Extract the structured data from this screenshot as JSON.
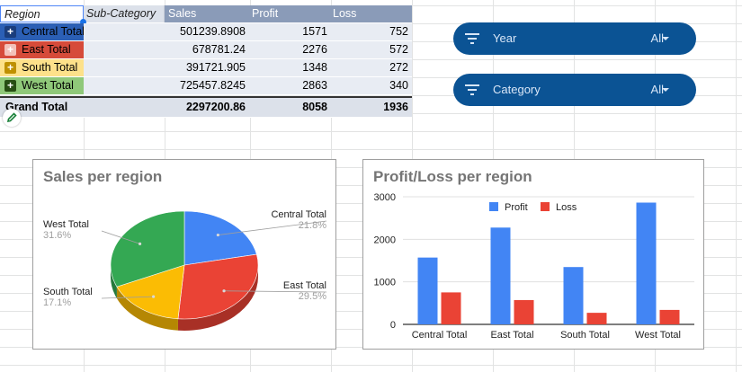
{
  "pivot": {
    "headers": {
      "region": "Region",
      "sub_category": "Sub-Category",
      "sales": "Sales",
      "profit": "Profit",
      "loss": "Loss"
    },
    "rows": [
      {
        "label": "Central Total",
        "sales": "501239.8908",
        "profit": "1571",
        "loss": "752",
        "toggle": "+",
        "color": "#2b5fb5",
        "toggle_color": "#1a3d7c",
        "text_color": "#000000"
      },
      {
        "label": "East Total",
        "sales": "678781.24",
        "profit": "2276",
        "loss": "572",
        "toggle": "+",
        "color": "#d64b3a",
        "toggle_color": "#f3c1ba",
        "text_color": "#000000"
      },
      {
        "label": "South Total",
        "sales": "391721.905",
        "profit": "1348",
        "loss": "272",
        "toggle": "+",
        "color": "#fde18a",
        "toggle_color": "#bf9000",
        "text_color": "#000000"
      },
      {
        "label": "West Total",
        "sales": "725457.8245",
        "profit": "2863",
        "loss": "340",
        "toggle": "+",
        "color": "#8fc879",
        "toggle_color": "#274e13",
        "text_color": "#000000"
      }
    ],
    "grand_total": {
      "label": "Grand Total",
      "sales": "2297200.86",
      "profit": "8058",
      "loss": "1936"
    }
  },
  "filters": [
    {
      "label": "Year",
      "value": "All"
    },
    {
      "label": "Category",
      "value": "All"
    }
  ],
  "chart_data": [
    {
      "type": "pie",
      "title": "Sales per region",
      "slices": [
        {
          "label": "Central Total",
          "value": 501239.8908,
          "percent": "21.8%",
          "color": "#4285f4"
        },
        {
          "label": "East Total",
          "value": 678781.24,
          "percent": "29.5%",
          "color": "#ea4335"
        },
        {
          "label": "South Total",
          "value": 391721.905,
          "percent": "17.1%",
          "color": "#fbbc04"
        },
        {
          "label": "West Total",
          "value": 725457.8245,
          "percent": "31.6%",
          "color": "#34a853"
        }
      ]
    },
    {
      "type": "bar",
      "title": "Profit/Loss  per region",
      "categories": [
        "Central Total",
        "East Total",
        "South Total",
        "West Total"
      ],
      "series": [
        {
          "name": "Profit",
          "values": [
            1571,
            2276,
            1348,
            2863
          ],
          "color": "#4285f4"
        },
        {
          "name": "Loss",
          "values": [
            752,
            572,
            272,
            340
          ],
          "color": "#ea4335"
        }
      ],
      "ylim": [
        0,
        3000
      ],
      "yticks": [
        0,
        1000,
        2000,
        3000
      ],
      "legend": "top",
      "grid": true
    }
  ]
}
